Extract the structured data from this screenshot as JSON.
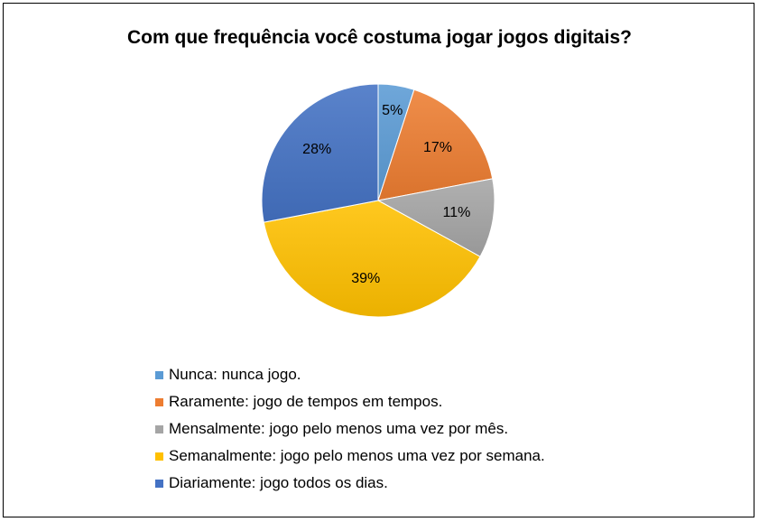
{
  "chart_data": {
    "type": "pie",
    "title": "Com que frequência você costuma jogar jogos digitais?",
    "slices": [
      {
        "label": "Nunca: nunca jogo.",
        "value": 5,
        "display": "5%",
        "color": "#5B9BD5"
      },
      {
        "label": "Raramente: jogo de tempos em tempos.",
        "value": 17,
        "display": "17%",
        "color": "#ED7D31"
      },
      {
        "label": "Mensalmente: jogo pelo menos uma vez por mês.",
        "value": 11,
        "display": "11%",
        "color": "#A5A5A5"
      },
      {
        "label": "Semanalmente: jogo pelo menos uma vez por semana.",
        "value": 39,
        "display": "39%",
        "color": "#FFC000"
      },
      {
        "label": "Diariamente: jogo todos os dias.",
        "value": 28,
        "display": "28%",
        "color": "#4472C4"
      }
    ],
    "legend_position": "bottom-left"
  }
}
